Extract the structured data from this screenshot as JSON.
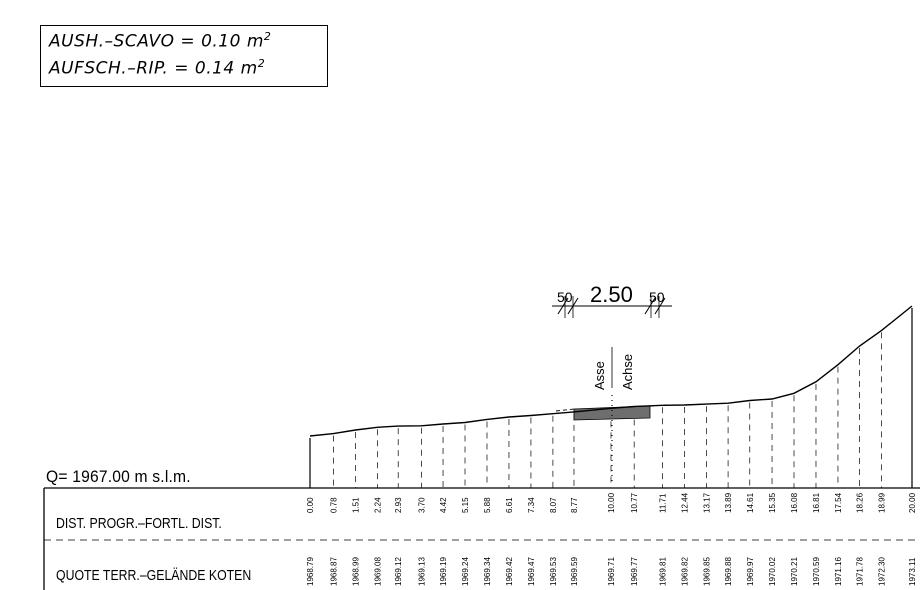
{
  "summary_box": {
    "line1_label": "AUSH.–SCAVO",
    "line1_eq": "= 0.10",
    "line1_unit": "m",
    "line1_sup": "2",
    "line2_label": "AUFSCH.–RIP.",
    "line2_eq": "= 0.14",
    "line2_unit": "m",
    "line2_sup": "2"
  },
  "datum_label": "Q= 1967.00 m s.l.m.",
  "rows": {
    "distance_label": "DIST. PROGR.–FORTL. DIST.",
    "elevation_label": "QUOTE TERR.–GELÄNDE KOTEN"
  },
  "dimension": {
    "left_offset": "50",
    "main_width": "2.50",
    "right_offset": "50"
  },
  "axis_labels": {
    "left": "Asse",
    "right": "Achse"
  },
  "stations": [
    {
      "dist": "0.00",
      "elev": "1968.79"
    },
    {
      "dist": "0.78",
      "elev": "1968.87"
    },
    {
      "dist": "1.51",
      "elev": "1968.99"
    },
    {
      "dist": "2.24",
      "elev": "1969.08"
    },
    {
      "dist": "2.93",
      "elev": "1969.12"
    },
    {
      "dist": "3.70",
      "elev": "1969.13"
    },
    {
      "dist": "4.42",
      "elev": "1969.19"
    },
    {
      "dist": "5.15",
      "elev": "1969.24"
    },
    {
      "dist": "5.88",
      "elev": "1969.34"
    },
    {
      "dist": "6.61",
      "elev": "1969.42"
    },
    {
      "dist": "7.34",
      "elev": "1969.47"
    },
    {
      "dist": "8.07",
      "elev": "1969.53"
    },
    {
      "dist": "8.77",
      "elev": "1969.59"
    },
    {
      "dist": "10.00",
      "elev": "1969.71"
    },
    {
      "dist": "10.77",
      "elev": "1969.77"
    },
    {
      "dist": "11.71",
      "elev": "1969.81"
    },
    {
      "dist": "12.44",
      "elev": "1969.82"
    },
    {
      "dist": "13.17",
      "elev": "1969.85"
    },
    {
      "dist": "13.89",
      "elev": "1969.88"
    },
    {
      "dist": "14.61",
      "elev": "1969.97"
    },
    {
      "dist": "15.35",
      "elev": "1970.02"
    },
    {
      "dist": "16.08",
      "elev": "1970.21"
    },
    {
      "dist": "16.81",
      "elev": "1970.59"
    },
    {
      "dist": "17.54",
      "elev": "1971.16"
    },
    {
      "dist": "18.26",
      "elev": "1971.78"
    },
    {
      "dist": "18.99",
      "elev": "1972.30"
    },
    {
      "dist": "20.00",
      "elev": "1973.11"
    }
  ]
}
